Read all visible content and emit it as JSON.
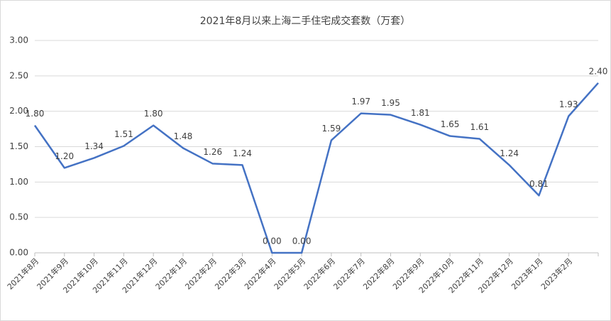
{
  "chart_data": {
    "type": "line",
    "title": "2021年8月以来上海二手住宅成交套数（万套）",
    "categories": [
      "2021年8月",
      "2021年9月",
      "2021年10月",
      "2021年11月",
      "2021年12月",
      "2022年1月",
      "2022年2月",
      "2022年3月",
      "2022年4月",
      "2022年5月",
      "2022年6月",
      "2022年7月",
      "2022年8月",
      "2022年9月",
      "2022年10月",
      "2022年11月",
      "2022年12月",
      "2023年1月",
      "2023年2月",
      null
    ],
    "series": [
      {
        "name": "成交套数",
        "color": "#4472c4",
        "values": [
          1.8,
          1.2,
          1.34,
          1.51,
          1.8,
          1.48,
          1.26,
          1.24,
          0.0,
          0.0,
          1.59,
          1.97,
          1.95,
          1.81,
          1.65,
          1.61,
          1.24,
          0.81,
          1.93,
          2.4
        ],
        "value_labels": [
          "1.80",
          "1.20",
          "1.34",
          "1.51",
          "1.80",
          "1.48",
          "1.26",
          "1.24",
          "0.00",
          "0.00",
          "1.59",
          "1.97",
          "1.95",
          "1.81",
          "1.65",
          "1.61",
          "1.24",
          "0.81",
          "1.93",
          "2.40"
        ]
      }
    ],
    "ylim": [
      0,
      3
    ],
    "yticks": [
      {
        "value": 0,
        "label": "0.00"
      },
      {
        "value": 0.5,
        "label": "0.50"
      },
      {
        "value": 1,
        "label": "1.00"
      },
      {
        "value": 1.5,
        "label": "1.50"
      },
      {
        "value": 2,
        "label": "2.00"
      },
      {
        "value": 2.5,
        "label": "2.50"
      },
      {
        "value": 3,
        "label": "3.00"
      }
    ],
    "grid": true
  }
}
